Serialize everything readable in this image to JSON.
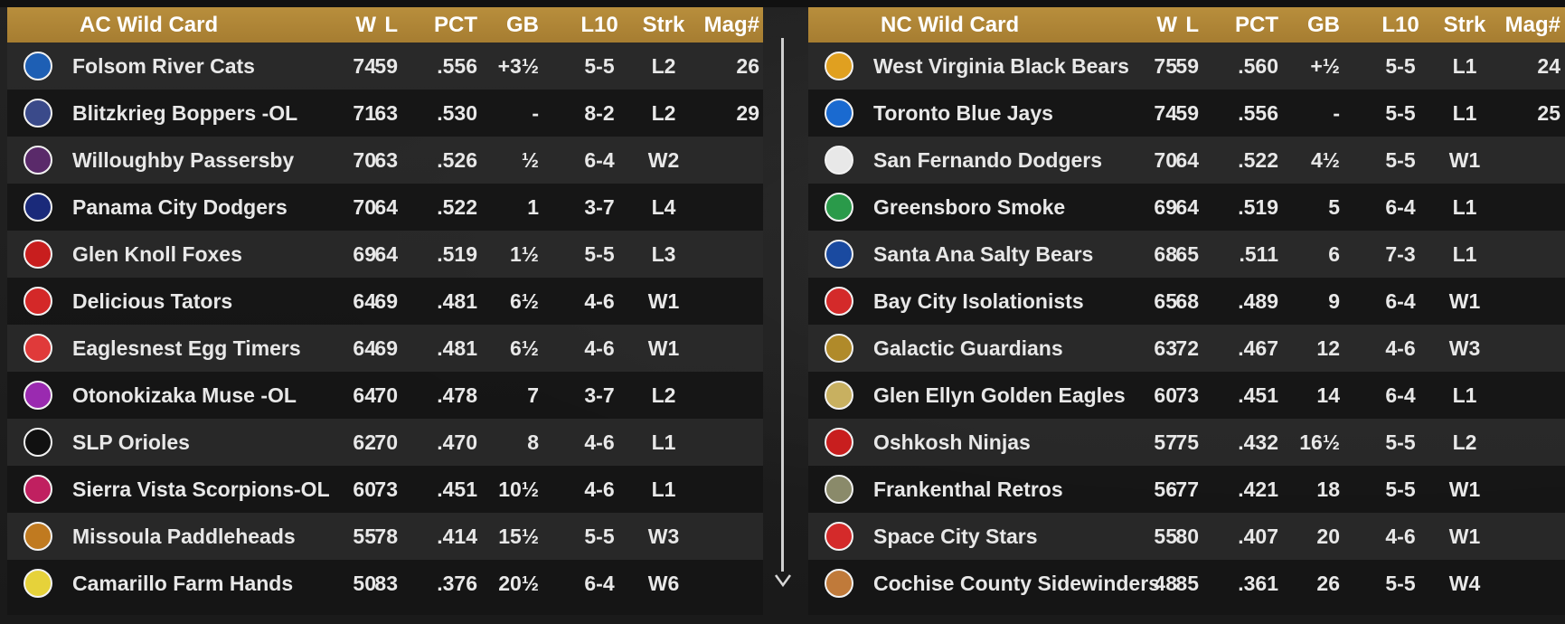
{
  "columns": {
    "w": "W",
    "l": "L",
    "pct": "PCT",
    "gb": "GB",
    "l10": "L10",
    "strk": "Strk",
    "mag": "Mag#"
  },
  "ac": {
    "title": "AC  Wild Card",
    "teams": [
      {
        "name": "Folsom River Cats",
        "w": "74",
        "l": "59",
        "pct": ".556",
        "gb": "+3½",
        "l10": "5-5",
        "strk": "L2",
        "mag": "26",
        "icon": "river-cats-logo-icon",
        "color": "#1e5fb4"
      },
      {
        "name": "Blitzkrieg Boppers -OL",
        "w": "71",
        "l": "63",
        "pct": ".530",
        "gb": "-",
        "l10": "8-2",
        "strk": "L2",
        "mag": "29",
        "icon": "boppers-logo-icon",
        "color": "#3a4a8a"
      },
      {
        "name": "Willoughby Passersby",
        "w": "70",
        "l": "63",
        "pct": ".526",
        "gb": "½",
        "l10": "6-4",
        "strk": "W2",
        "mag": "",
        "icon": "passersby-logo-icon",
        "color": "#5a2a6a"
      },
      {
        "name": "Panama City Dodgers",
        "w": "70",
        "l": "64",
        "pct": ".522",
        "gb": "1",
        "l10": "3-7",
        "strk": "L4",
        "mag": "",
        "icon": "panama-dodgers-logo-icon",
        "color": "#1a2a7a"
      },
      {
        "name": "Glen Knoll Foxes",
        "w": "69",
        "l": "64",
        "pct": ".519",
        "gb": "1½",
        "l10": "5-5",
        "strk": "L3",
        "mag": "",
        "icon": "foxes-logo-icon",
        "color": "#c81e1e"
      },
      {
        "name": "Delicious Tators",
        "w": "64",
        "l": "69",
        "pct": ".481",
        "gb": "6½",
        "l10": "4-6",
        "strk": "W1",
        "mag": "",
        "icon": "tators-logo-icon",
        "color": "#d42828"
      },
      {
        "name": "Eaglesnest Egg Timers",
        "w": "64",
        "l": "69",
        "pct": ".481",
        "gb": "6½",
        "l10": "4-6",
        "strk": "W1",
        "mag": "",
        "icon": "egg-timers-logo-icon",
        "color": "#e03a3a"
      },
      {
        "name": "Otonokizaka Muse -OL",
        "w": "64",
        "l": "70",
        "pct": ".478",
        "gb": "7",
        "l10": "3-7",
        "strk": "L2",
        "mag": "",
        "icon": "muse-logo-icon",
        "color": "#9a2ab0"
      },
      {
        "name": "SLP Orioles",
        "w": "62",
        "l": "70",
        "pct": ".470",
        "gb": "8",
        "l10": "4-6",
        "strk": "L1",
        "mag": "",
        "icon": "orioles-logo-icon",
        "color": "#111111"
      },
      {
        "name": "Sierra Vista Scorpions-OL",
        "w": "60",
        "l": "73",
        "pct": ".451",
        "gb": "10½",
        "l10": "4-6",
        "strk": "L1",
        "mag": "",
        "icon": "scorpions-logo-icon",
        "color": "#c02060"
      },
      {
        "name": "Missoula Paddleheads",
        "w": "55",
        "l": "78",
        "pct": ".414",
        "gb": "15½",
        "l10": "5-5",
        "strk": "W3",
        "mag": "",
        "icon": "paddleheads-logo-icon",
        "color": "#c07a20"
      },
      {
        "name": "Camarillo Farm Hands",
        "w": "50",
        "l": "83",
        "pct": ".376",
        "gb": "20½",
        "l10": "6-4",
        "strk": "W6",
        "mag": "",
        "icon": "farm-hands-logo-icon",
        "color": "#e6d23a"
      }
    ]
  },
  "nc": {
    "title": "NC  Wild Card",
    "teams": [
      {
        "name": "West Virginia Black Bears",
        "w": "75",
        "l": "59",
        "pct": ".560",
        "gb": "+½",
        "l10": "5-5",
        "strk": "L1",
        "mag": "24",
        "icon": "black-bears-logo-icon",
        "color": "#e0a020"
      },
      {
        "name": "Toronto Blue Jays",
        "w": "74",
        "l": "59",
        "pct": ".556",
        "gb": "-",
        "l10": "5-5",
        "strk": "L1",
        "mag": "25",
        "icon": "blue-jays-logo-icon",
        "color": "#1a6ad0"
      },
      {
        "name": "San Fernando Dodgers",
        "w": "70",
        "l": "64",
        "pct": ".522",
        "gb": "4½",
        "l10": "5-5",
        "strk": "W1",
        "mag": "",
        "icon": "la-dodgers-logo-icon",
        "color": "#e8e8e8"
      },
      {
        "name": "Greensboro Smoke",
        "w": "69",
        "l": "64",
        "pct": ".519",
        "gb": "5",
        "l10": "6-4",
        "strk": "L1",
        "mag": "",
        "icon": "smoke-logo-icon",
        "color": "#2a9a4a"
      },
      {
        "name": "Santa Ana Salty Bears",
        "w": "68",
        "l": "65",
        "pct": ".511",
        "gb": "6",
        "l10": "7-3",
        "strk": "L1",
        "mag": "",
        "icon": "salty-bears-logo-icon",
        "color": "#1a4aa0"
      },
      {
        "name": "Bay City Isolationists",
        "w": "65",
        "l": "68",
        "pct": ".489",
        "gb": "9",
        "l10": "6-4",
        "strk": "W1",
        "mag": "",
        "icon": "isolationists-logo-icon",
        "color": "#d42a2a"
      },
      {
        "name": "Galactic Guardians",
        "w": "63",
        "l": "72",
        "pct": ".467",
        "gb": "12",
        "l10": "4-6",
        "strk": "W3",
        "mag": "",
        "icon": "guardians-logo-icon",
        "color": "#b08a2a"
      },
      {
        "name": "Glen Ellyn Golden Eagles",
        "w": "60",
        "l": "73",
        "pct": ".451",
        "gb": "14",
        "l10": "6-4",
        "strk": "L1",
        "mag": "",
        "icon": "golden-eagles-logo-icon",
        "color": "#c8b060"
      },
      {
        "name": "Oshkosh Ninjas",
        "w": "57",
        "l": "75",
        "pct": ".432",
        "gb": "16½",
        "l10": "5-5",
        "strk": "L2",
        "mag": "",
        "icon": "ninjas-logo-icon",
        "color": "#c81e1e"
      },
      {
        "name": "Frankenthal Retros",
        "w": "56",
        "l": "77",
        "pct": ".421",
        "gb": "18",
        "l10": "5-5",
        "strk": "W1",
        "mag": "",
        "icon": "retros-logo-icon",
        "color": "#8a8a6a"
      },
      {
        "name": "Space City Stars",
        "w": "55",
        "l": "80",
        "pct": ".407",
        "gb": "20",
        "l10": "4-6",
        "strk": "W1",
        "mag": "",
        "icon": "stars-logo-icon",
        "color": "#d42a2a"
      },
      {
        "name": "Cochise County Sidewinders",
        "w": "48",
        "l": "85",
        "pct": ".361",
        "gb": "26",
        "l10": "5-5",
        "strk": "W4",
        "mag": "",
        "icon": "sidewinders-logo-icon",
        "color": "#c07a3a"
      }
    ]
  },
  "colors": {
    "header": "#a67d31",
    "text": "#e8e8e8",
    "divider": "#cfcfcf"
  },
  "scroll": {
    "icon": "chevron-down-icon"
  }
}
